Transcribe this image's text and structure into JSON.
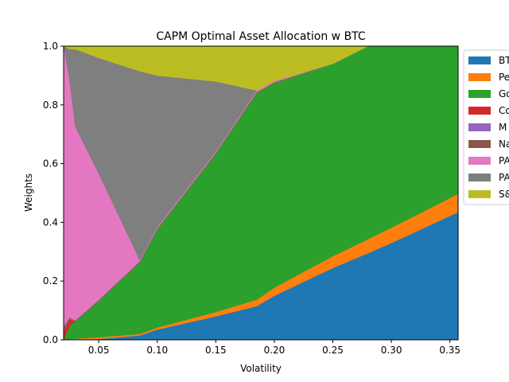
{
  "chart_data": {
    "type": "area",
    "stacked": true,
    "title": "CAPM Optimal Asset Allocation w BTC",
    "xlabel": "Volatility",
    "ylabel": "Weights",
    "xlim": [
      0.02,
      0.357
    ],
    "ylim": [
      0.0,
      1.0
    ],
    "xticks": [
      0.05,
      0.1,
      0.15,
      0.2,
      0.25,
      0.3,
      0.35
    ],
    "xtick_labels": [
      "0.05",
      "0.10",
      "0.15",
      "0.20",
      "0.25",
      "0.30",
      "0.35"
    ],
    "yticks": [
      0.0,
      0.2,
      0.4,
      0.6,
      0.8,
      1.0
    ],
    "ytick_labels": [
      "0.0",
      "0.2",
      "0.4",
      "0.6",
      "0.8",
      "1.0"
    ],
    "legend_placement": "outside-right",
    "x": [
      0.02,
      0.025,
      0.03,
      0.05,
      0.085,
      0.1,
      0.15,
      0.185,
      0.2,
      0.25,
      0.28,
      0.3,
      0.357
    ],
    "series": [
      {
        "name": "BTC",
        "color": "#1f77b4",
        "values": [
          0.0,
          0.0,
          0.0,
          0.003,
          0.015,
          0.035,
          0.08,
          0.115,
          0.15,
          0.245,
          0.295,
          0.33,
          0.435
        ]
      },
      {
        "name": "Pe",
        "color": "#ff7f0e",
        "values": [
          0.0,
          0.003,
          0.004,
          0.006,
          0.005,
          0.007,
          0.015,
          0.022,
          0.028,
          0.04,
          0.048,
          0.052,
          0.062
        ]
      },
      {
        "name": "Go",
        "color": "#2ca02c",
        "values": [
          0.0,
          0.045,
          0.06,
          0.125,
          0.245,
          0.335,
          0.54,
          0.705,
          0.697,
          0.655,
          0.657,
          0.618,
          0.503
        ]
      },
      {
        "name": "Co",
        "color": "#d62728",
        "values": [
          0.03,
          0.022,
          0.0,
          0.0,
          0.0,
          0.0,
          0.0,
          0.0,
          0.0,
          0.0,
          0.0,
          0.0,
          0.0
        ]
      },
      {
        "name": "M",
        "color": "#9467bd",
        "values": [
          0.005,
          0.002,
          0.0,
          0.0,
          0.0,
          0.0,
          0.0,
          0.0,
          0.0,
          0.0,
          0.0,
          0.0,
          0.0
        ]
      },
      {
        "name": "Na",
        "color": "#8c564b",
        "values": [
          0.01,
          0.004,
          0.002,
          0.002,
          0.002,
          0.002,
          0.002,
          0.002,
          0.002,
          0.0,
          0.0,
          0.0,
          0.0
        ]
      },
      {
        "name": "PA",
        "color": "#e377c2",
        "values": [
          0.955,
          0.81,
          0.66,
          0.43,
          0.005,
          0.005,
          0.005,
          0.005,
          0.005,
          0.0,
          0.0,
          0.0,
          0.0
        ]
      },
      {
        "name": "PA",
        "color": "#7f7f7f",
        "values": [
          0.0,
          0.104,
          0.264,
          0.394,
          0.643,
          0.516,
          0.238,
          0.0,
          0.0,
          0.0,
          0.0,
          0.0,
          0.0
        ]
      },
      {
        "name": "S&",
        "color": "#bcbd22",
        "values": [
          0.0,
          0.01,
          0.01,
          0.04,
          0.085,
          0.1,
          0.12,
          0.151,
          0.118,
          0.06,
          0.0,
          0.0,
          0.0
        ]
      }
    ]
  }
}
